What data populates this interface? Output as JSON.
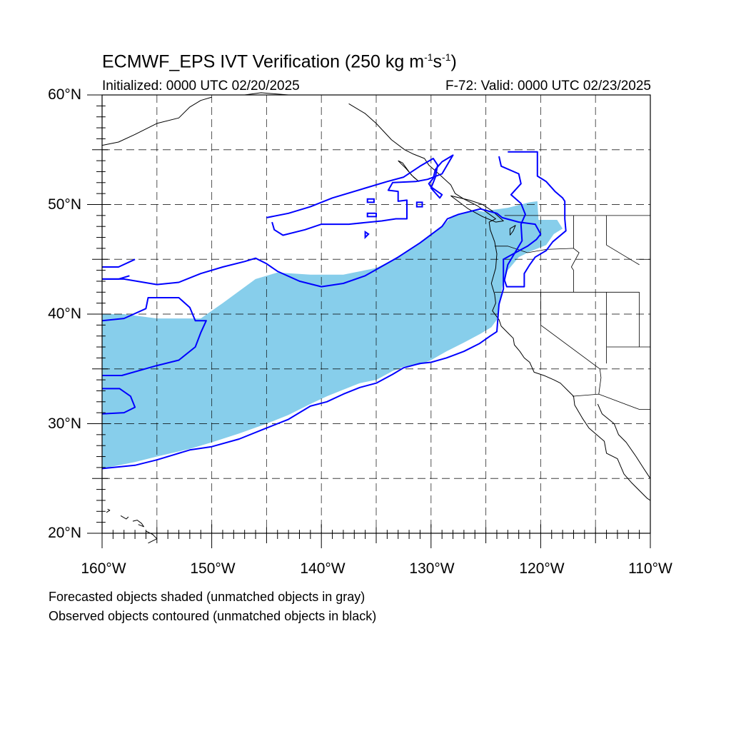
{
  "title": {
    "main": "ECMWF_EPS IVT Verification (250 kg m",
    "exp1": "-1",
    "mid": "s",
    "exp2": "-1",
    "end": ")"
  },
  "subtitle_left": "Initialized: 0000 UTC 02/20/2025",
  "subtitle_right": "F-72: Valid: 0000 UTC 02/23/2025",
  "lat_labels": [
    "60°N",
    "50°N",
    "40°N",
    "30°N",
    "20°N"
  ],
  "lon_labels": [
    "160°W",
    "150°W",
    "140°W",
    "130°W",
    "120°W",
    "110°W"
  ],
  "extent": {
    "lon": [
      -160,
      -110
    ],
    "lat": [
      20,
      60
    ]
  },
  "footnotes": [
    "Forecasted objects shaded (unmatched objects in gray)",
    "Observed objects contoured (unmatched objects in black)"
  ],
  "colors": {
    "forecast_fill": "#87ceeb",
    "observed_contour": "#0000ff",
    "grid": "#000000"
  },
  "forecast_object": [
    [
      -160,
      40
    ],
    [
      -158,
      40
    ],
    [
      -155,
      39.6
    ],
    [
      -151,
      39.6
    ],
    [
      -149,
      41
    ],
    [
      -146,
      43.2
    ],
    [
      -144,
      43.8
    ],
    [
      -141,
      43.6
    ],
    [
      -138,
      43.6
    ],
    [
      -135,
      44.2
    ],
    [
      -133,
      45.2
    ],
    [
      -131,
      46.5
    ],
    [
      -129,
      48
    ],
    [
      -128,
      49
    ],
    [
      -126,
      49.5
    ],
    [
      -125,
      49.3
    ],
    [
      -124.5,
      49.5
    ],
    [
      -123,
      49.7
    ],
    [
      -121,
      50.2
    ],
    [
      -120.3,
      50.3
    ],
    [
      -120.2,
      48.6
    ],
    [
      -118.5,
      48.6
    ],
    [
      -118,
      47.8
    ],
    [
      -118.8,
      47.3
    ],
    [
      -119.5,
      46.3
    ],
    [
      -121,
      45.7
    ],
    [
      -122,
      45.2
    ],
    [
      -123,
      44
    ],
    [
      -123.5,
      42.5
    ],
    [
      -124,
      39.5
    ],
    [
      -124.5,
      38.8
    ],
    [
      -125.5,
      38.2
    ],
    [
      -127,
      37.4
    ],
    [
      -128.6,
      36.6
    ],
    [
      -130,
      35.8
    ],
    [
      -131,
      35.4
    ],
    [
      -132.5,
      35.2
    ],
    [
      -133.5,
      34.8
    ],
    [
      -135,
      34
    ],
    [
      -136.5,
      33.7
    ],
    [
      -138,
      33.1
    ],
    [
      -139.5,
      32.5
    ],
    [
      -141,
      31.8
    ],
    [
      -143,
      30.8
    ],
    [
      -145,
      30
    ],
    [
      -147.5,
      29.1
    ],
    [
      -150,
      28.3
    ],
    [
      -152,
      27.7
    ],
    [
      -155,
      27
    ],
    [
      -157,
      26.5
    ],
    [
      -160,
      25.9
    ]
  ],
  "observed_objects": [
    [
      [
        -160,
        43.2
      ],
      [
        -158,
        43.2
      ],
      [
        -155,
        42.7
      ],
      [
        -153,
        42.9
      ],
      [
        -151,
        43.7
      ],
      [
        -149,
        44.3
      ],
      [
        -147,
        44.8
      ],
      [
        -146,
        45.1
      ],
      [
        -145,
        44.6
      ],
      [
        -144,
        43.9
      ],
      [
        -142,
        43
      ],
      [
        -140,
        42.5
      ],
      [
        -138,
        42.8
      ],
      [
        -136,
        43.5
      ],
      [
        -133,
        45.2
      ],
      [
        -131,
        46.5
      ],
      [
        -129,
        48
      ],
      [
        -128.5,
        48.7
      ],
      [
        -127.5,
        49.1
      ],
      [
        -125.5,
        49.6
      ],
      [
        -124,
        49.2
      ],
      [
        -123.5,
        48.8
      ],
      [
        -122,
        48.4
      ],
      [
        -120.5,
        48.2
      ],
      [
        -120,
        47.3
      ],
      [
        -120.4,
        46.8
      ],
      [
        -121.2,
        46.2
      ],
      [
        -122.5,
        45.5
      ],
      [
        -123.4,
        45
      ],
      [
        -123.4,
        42.3
      ],
      [
        -123.8,
        40.9
      ],
      [
        -124,
        38.4
      ],
      [
        -124.6,
        38
      ],
      [
        -125.6,
        37.3
      ],
      [
        -127,
        36.6
      ],
      [
        -128.6,
        36
      ],
      [
        -130,
        35.6
      ],
      [
        -131,
        35.5
      ],
      [
        -132.5,
        35.1
      ],
      [
        -133.5,
        34.5
      ],
      [
        -135,
        33.7
      ],
      [
        -136.5,
        33.3
      ],
      [
        -138,
        32.7
      ],
      [
        -139.5,
        32
      ],
      [
        -141,
        31.6
      ],
      [
        -143,
        30.4
      ],
      [
        -145,
        29.6
      ],
      [
        -147.5,
        28.6
      ],
      [
        -150,
        27.9
      ],
      [
        -152,
        27.6
      ],
      [
        -155,
        26.7
      ],
      [
        -157,
        26.2
      ],
      [
        -160,
        25.9
      ]
    ],
    [
      [
        -160,
        34.4
      ],
      [
        -158.2,
        34.4
      ],
      [
        -155,
        35.3
      ],
      [
        -153,
        35.8
      ],
      [
        -151.5,
        37
      ],
      [
        -151,
        38.3
      ],
      [
        -150.5,
        39.4
      ],
      [
        -151.5,
        39.4
      ],
      [
        -152,
        40.6
      ],
      [
        -153,
        41.5
      ],
      [
        -155.8,
        41.5
      ],
      [
        -156,
        40.5
      ],
      [
        -158,
        39.6
      ],
      [
        -160,
        39.4
      ]
    ],
    [
      [
        -160,
        33.2
      ],
      [
        -158.4,
        33.2
      ],
      [
        -157.4,
        32.5
      ],
      [
        -157,
        31.5
      ],
      [
        -158,
        31
      ],
      [
        -160,
        30.9
      ]
    ],
    [
      [
        -160,
        43.2
      ],
      [
        -158.5,
        43.2
      ],
      [
        -157.5,
        43.5
      ]
    ],
    [
      [
        -160,
        44.3
      ],
      [
        -158.5,
        44.3
      ],
      [
        -157,
        45
      ]
    ],
    [
      [
        -145,
        48.8
      ],
      [
        -143,
        49.2
      ],
      [
        -141,
        49.8
      ],
      [
        -139,
        50.6
      ],
      [
        -136,
        51.5
      ],
      [
        -134,
        52.1
      ],
      [
        -132.5,
        52.5
      ],
      [
        -131,
        53.5
      ],
      [
        -129.8,
        54.2
      ],
      [
        -129.4,
        53.6
      ],
      [
        -129.6,
        52.5
      ],
      [
        -130,
        51.5
      ],
      [
        -129.2,
        50.6
      ],
      [
        -129,
        50.9
      ],
      [
        -130,
        51.6
      ],
      [
        -130.2,
        51.9
      ],
      [
        -129.8,
        52.4
      ],
      [
        -129.6,
        53.2
      ],
      [
        -129,
        53.9
      ],
      [
        -128,
        54.5
      ],
      [
        -129,
        52.8
      ],
      [
        -130.3,
        52.3
      ],
      [
        -131.4,
        52.1
      ],
      [
        -133.5,
        52
      ],
      [
        -133.9,
        51.3
      ],
      [
        -133,
        51.2
      ],
      [
        -133,
        50.3
      ],
      [
        -132.2,
        50.4
      ],
      [
        -132.2,
        48.7
      ],
      [
        -133.2,
        48.7
      ],
      [
        -134.5,
        48.5
      ],
      [
        -137.5,
        48.2
      ],
      [
        -140,
        48.2
      ],
      [
        -141.5,
        47.7
      ],
      [
        -143.5,
        47.2
      ],
      [
        -144.3,
        47.7
      ],
      [
        -144.5,
        48.4
      ]
    ],
    [
      [
        -123,
        54.8
      ],
      [
        -120.3,
        54.8
      ],
      [
        -120.3,
        52.6
      ],
      [
        -119.5,
        52.1
      ],
      [
        -118.7,
        51.2
      ],
      [
        -118,
        50.6
      ],
      [
        -117.8,
        50.3
      ],
      [
        -117.8,
        48.7
      ],
      [
        -117.7,
        47.6
      ],
      [
        -118.9,
        46.6
      ],
      [
        -119.5,
        45.8
      ],
      [
        -120.5,
        45.2
      ],
      [
        -121,
        44.5
      ],
      [
        -121.5,
        43.7
      ],
      [
        -121.5,
        42.5
      ],
      [
        -123.1,
        42.5
      ],
      [
        -123.3,
        43.1
      ],
      [
        -123,
        44.5
      ],
      [
        -121.7,
        46.7
      ],
      [
        -121.8,
        48.2
      ],
      [
        -121.4,
        49.1
      ],
      [
        -121.8,
        50.1
      ],
      [
        -122.7,
        50.9
      ],
      [
        -121.8,
        51.9
      ],
      [
        -122,
        52.8
      ],
      [
        -123.6,
        53.5
      ],
      [
        -123.8,
        54.4
      ]
    ]
  ],
  "small_observed": [
    [
      [
        -135.8,
        50.2
      ],
      [
        -135.2,
        50.2
      ],
      [
        -135.2,
        50.5
      ],
      [
        -135.8,
        50.5
      ]
    ],
    [
      [
        -135.8,
        48.9
      ],
      [
        -135,
        48.9
      ],
      [
        -135,
        49.2
      ],
      [
        -135.8,
        49.2
      ]
    ],
    [
      [
        -131.3,
        49.8
      ],
      [
        -130.8,
        49.8
      ],
      [
        -130.8,
        50.2
      ],
      [
        -131.3,
        50.2
      ]
    ],
    [
      [
        -136,
        47
      ],
      [
        -135.7,
        47.3
      ],
      [
        -136,
        47.5
      ]
    ]
  ],
  "coastlines": [
    [
      [
        -160,
        55.4
      ],
      [
        -158.5,
        55.7
      ],
      [
        -157,
        56.4
      ],
      [
        -155,
        57.4
      ],
      [
        -153,
        57.9
      ],
      [
        -152,
        58.9
      ],
      [
        -151,
        59.5
      ],
      [
        -150,
        59.8
      ]
    ],
    [
      [
        -147,
        60
      ],
      [
        -145.5,
        60.2
      ],
      [
        -143,
        60
      ]
    ],
    [
      [
        -137.5,
        59.2
      ],
      [
        -136,
        58.3
      ],
      [
        -135,
        57.4
      ],
      [
        -133.6,
        55.9
      ],
      [
        -132.4,
        55
      ],
      [
        -131.6,
        54.6
      ],
      [
        -130.6,
        54.2
      ],
      [
        -130.2,
        53.6
      ],
      [
        -129.3,
        52.8
      ],
      [
        -128.2,
        51.8
      ],
      [
        -127.8,
        51
      ],
      [
        -127,
        50.5
      ],
      [
        -125.8,
        49.9
      ],
      [
        -124.8,
        49.2
      ],
      [
        -124.1,
        48.7
      ],
      [
        -124.7,
        48.4
      ],
      [
        -124.6,
        47.7
      ],
      [
        -124.2,
        46.6
      ],
      [
        -124,
        45.5
      ],
      [
        -124.1,
        44.2
      ],
      [
        -124.5,
        42.8
      ],
      [
        -124.2,
        41.8
      ],
      [
        -124.1,
        41
      ],
      [
        -124.4,
        40.3
      ],
      [
        -123.8,
        39.5
      ],
      [
        -123.6,
        38.9
      ],
      [
        -123,
        38.3
      ],
      [
        -122.5,
        37.8
      ],
      [
        -122.4,
        37.2
      ],
      [
        -121.9,
        36.6
      ],
      [
        -121.5,
        36
      ],
      [
        -121,
        35.6
      ],
      [
        -120.6,
        34.7
      ],
      [
        -119.7,
        34.4
      ],
      [
        -118.8,
        34
      ],
      [
        -118.2,
        33.7
      ],
      [
        -117.5,
        33
      ],
      [
        -117,
        32.5
      ],
      [
        -116.9,
        31.7
      ],
      [
        -116.2,
        30.5
      ],
      [
        -115.6,
        29.6
      ],
      [
        -114.2,
        28.4
      ],
      [
        -114,
        27.3
      ],
      [
        -113,
        26.8
      ],
      [
        -112.4,
        25.4
      ],
      [
        -111.7,
        24.6
      ],
      [
        -110.3,
        23.2
      ],
      [
        -110,
        23
      ]
    ],
    [
      [
        -114.8,
        31.8
      ],
      [
        -114.4,
        30.9
      ],
      [
        -113.3,
        30
      ],
      [
        -112.9,
        29
      ],
      [
        -112.2,
        28.3
      ],
      [
        -111.3,
        27
      ],
      [
        -110.6,
        25.9
      ],
      [
        -110,
        25
      ]
    ],
    [
      [
        -133,
        54
      ],
      [
        -132.3,
        53.3
      ],
      [
        -131.6,
        52.5
      ],
      [
        -131.1,
        52.1
      ],
      [
        -131.8,
        52.7
      ],
      [
        -132.6,
        53.8
      ],
      [
        -133,
        54
      ]
    ],
    [
      [
        -128.2,
        50.8
      ],
      [
        -126.5,
        50.4
      ],
      [
        -125.3,
        50
      ],
      [
        -124.4,
        49.4
      ],
      [
        -123.4,
        48.5
      ],
      [
        -124.1,
        48.4
      ],
      [
        -125.3,
        48.9
      ],
      [
        -126.6,
        49.6
      ],
      [
        -128.2,
        50.8
      ]
    ],
    [
      [
        -122.8,
        47.2
      ],
      [
        -122.5,
        47.6
      ],
      [
        -122.3,
        48.1
      ],
      [
        -122.8,
        47.8
      ],
      [
        -122.8,
        47.2
      ]
    ],
    [
      [
        -159.5,
        22.2
      ],
      [
        -159.3,
        22.1
      ],
      [
        -159.6,
        21.9
      ]
    ],
    [
      [
        -158.3,
        21.6
      ],
      [
        -157.8,
        21.3
      ],
      [
        -157.6,
        21.5
      ]
    ],
    [
      [
        -157.2,
        21.1
      ],
      [
        -156.8,
        21.2
      ],
      [
        -156.4,
        20.9
      ],
      [
        -156.2,
        20.6
      ],
      [
        -156.7,
        20.8
      ]
    ],
    [
      [
        -156,
        20.2
      ],
      [
        -155.4,
        19.9
      ],
      [
        -155,
        19.5
      ],
      [
        -155.8,
        19.1
      ]
    ]
  ],
  "borders": [
    [
      [
        -123.3,
        49
      ],
      [
        -110,
        49
      ]
    ],
    [
      [
        -124.2,
        46.2
      ],
      [
        -123,
        46.2
      ],
      [
        -121.2,
        45.6
      ],
      [
        -119.5,
        45.9
      ],
      [
        -117,
        46
      ]
    ],
    [
      [
        -117,
        49
      ],
      [
        -117,
        46
      ],
      [
        -116.5,
        45.6
      ],
      [
        -117.2,
        44.3
      ],
      [
        -117,
        44
      ],
      [
        -117,
        42
      ]
    ],
    [
      [
        -124.2,
        42
      ],
      [
        -111,
        42
      ]
    ],
    [
      [
        -120,
        42
      ],
      [
        -120,
        39
      ],
      [
        -114.6,
        35
      ],
      [
        -114.5,
        34.2
      ],
      [
        -114.7,
        32.7
      ]
    ],
    [
      [
        -117.1,
        32.5
      ],
      [
        -114.7,
        32.7
      ],
      [
        -111,
        31.3
      ],
      [
        -110,
        31.3
      ]
    ],
    [
      [
        -114,
        49
      ],
      [
        -114,
        46.3
      ],
      [
        -111,
        44.5
      ]
    ],
    [
      [
        -111,
        45
      ],
      [
        -110,
        45
      ]
    ],
    [
      [
        -111,
        42
      ],
      [
        -111,
        37
      ]
    ],
    [
      [
        -114,
        42
      ],
      [
        -114,
        35.5
      ]
    ],
    [
      [
        -114,
        37
      ],
      [
        -110,
        37
      ]
    ]
  ]
}
